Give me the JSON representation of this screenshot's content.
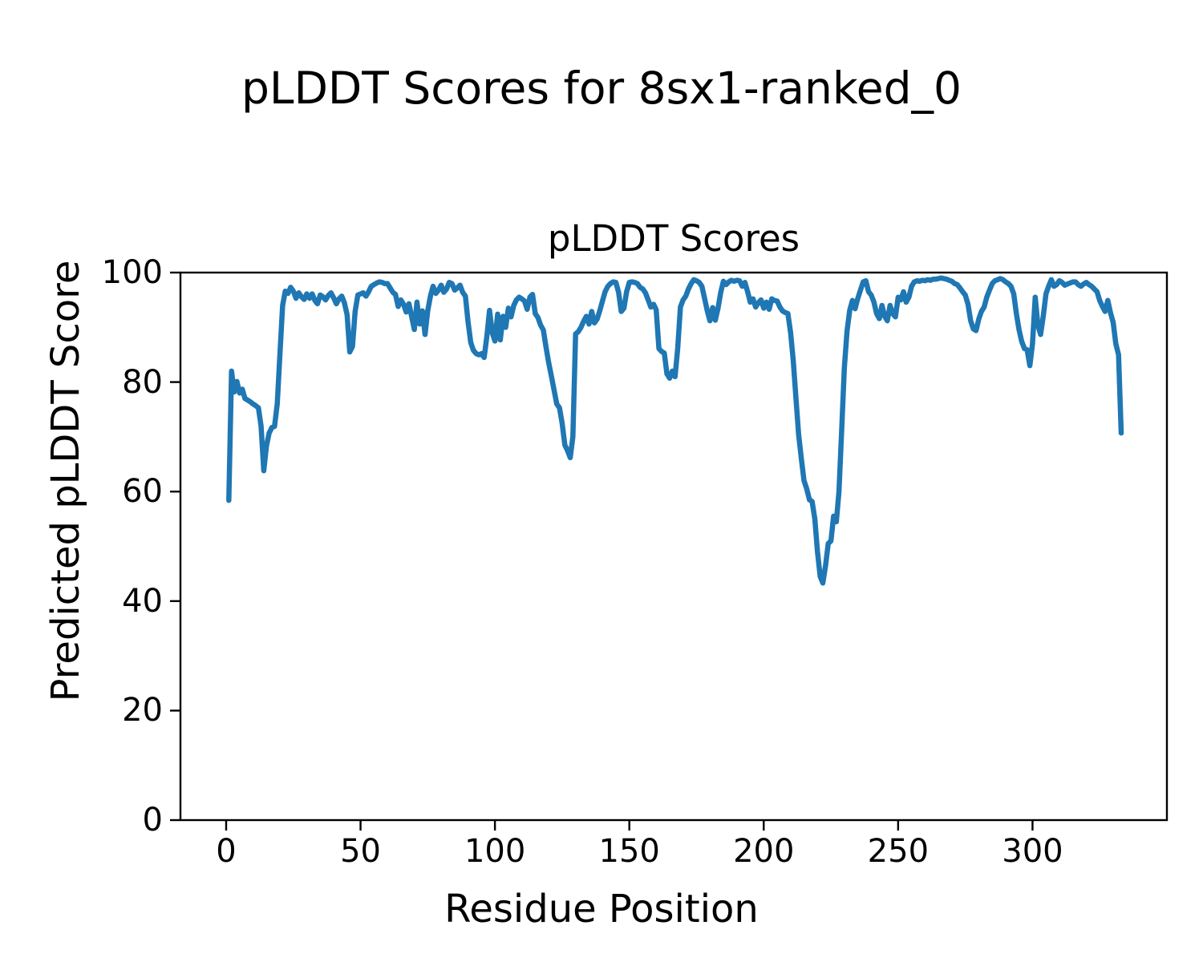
{
  "figure": {
    "suptitle": "pLDDT Scores for 8sx1-ranked_0"
  },
  "chart_data": {
    "type": "line",
    "title": "pLDDT Scores",
    "xlabel": "Residue Position",
    "ylabel": "Predicted pLDDT Score",
    "series_name": "pLDDT per residue",
    "line_color": "#1f77b4",
    "axis_color": "#000000",
    "grid": false,
    "legend": "none",
    "xlim": [
      -17,
      350
    ],
    "ylim": [
      0,
      100
    ],
    "xticks": [
      0,
      50,
      100,
      150,
      200,
      250,
      300
    ],
    "yticks": [
      0,
      20,
      40,
      60,
      80,
      100
    ],
    "x_start": 1,
    "x_step": 1,
    "y": [
      58.4,
      82.0,
      78.2,
      80.1,
      78.0,
      78.7,
      77.0,
      76.7,
      76.4,
      76.0,
      75.7,
      75.3,
      72.0,
      63.8,
      68.3,
      70.7,
      71.7,
      71.9,
      76.0,
      85.0,
      94.0,
      96.6,
      96.2,
      97.3,
      96.6,
      95.3,
      96.3,
      95.6,
      95.1,
      96.1,
      95.3,
      96.1,
      94.9,
      94.3,
      95.9,
      95.6,
      95.0,
      95.8,
      96.3,
      95.4,
      94.3,
      95.2,
      95.7,
      94.5,
      92.3,
      85.5,
      86.5,
      92.9,
      95.9,
      96.1,
      96.3,
      95.7,
      96.5,
      97.5,
      97.8,
      98.1,
      98.3,
      98.2,
      98.0,
      98.0,
      97.2,
      96.4,
      96.0,
      93.8,
      95.0,
      94.2,
      92.8,
      94.3,
      92.0,
      89.6,
      94.6,
      90.6,
      93.0,
      88.7,
      93.0,
      95.7,
      97.5,
      96.2,
      96.8,
      97.7,
      96.4,
      97.0,
      98.2,
      98.0,
      96.8,
      97.2,
      97.7,
      96.4,
      95.7,
      91.0,
      87.2,
      85.8,
      85.2,
      85.0,
      85.2,
      84.5,
      88.4,
      93.1,
      89.0,
      87.5,
      92.4,
      87.7,
      92.0,
      90.0,
      93.5,
      91.9,
      94.0,
      95.0,
      95.5,
      95.2,
      94.8,
      93.3,
      95.5,
      96.0,
      92.5,
      91.8,
      90.4,
      89.5,
      86.4,
      83.5,
      81.1,
      78.5,
      76.0,
      75.3,
      72.5,
      68.5,
      67.5,
      66.2,
      70.0,
      88.8,
      89.2,
      90.0,
      91.1,
      92.0,
      90.6,
      92.9,
      90.8,
      91.5,
      93.0,
      94.8,
      96.5,
      97.5,
      98.0,
      98.3,
      98.2,
      96.4,
      92.9,
      93.5,
      96.5,
      98.2,
      98.3,
      98.2,
      98.0,
      97.3,
      97.0,
      96.3,
      95.0,
      93.7,
      94.2,
      93.2,
      86.1,
      85.6,
      85.3,
      81.5,
      80.7,
      82.0,
      81.0,
      86.1,
      93.7,
      95.0,
      95.7,
      97.0,
      98.0,
      98.7,
      98.5,
      98.2,
      97.5,
      95.3,
      93.0,
      91.2,
      93.6,
      91.3,
      93.5,
      96.4,
      98.4,
      97.8,
      98.3,
      98.6,
      98.4,
      98.6,
      98.5,
      97.5,
      98.2,
      96.5,
      94.6,
      95.2,
      93.7,
      94.5,
      95.0,
      93.5,
      94.6,
      93.3,
      95.2,
      94.9,
      94.8,
      93.7,
      93.0,
      92.7,
      92.5,
      89.0,
      83.9,
      77.0,
      70.4,
      66.0,
      62.0,
      60.5,
      58.5,
      58.2,
      55.0,
      49.0,
      44.5,
      43.3,
      46.5,
      50.5,
      51.0,
      55.5,
      54.5,
      60.0,
      71.3,
      82.6,
      89.4,
      93.1,
      94.9,
      93.4,
      95.3,
      96.8,
      98.3,
      98.5,
      96.5,
      95.9,
      94.6,
      92.5,
      91.6,
      94.0,
      92.0,
      91.2,
      94.0,
      92.5,
      91.9,
      95.5,
      95.0,
      96.5,
      94.6,
      95.5,
      97.5,
      98.3,
      98.5,
      98.4,
      98.6,
      98.5,
      98.7,
      98.6,
      98.8,
      98.8,
      98.9,
      99.0,
      98.9,
      98.8,
      98.6,
      98.4,
      98.0,
      97.8,
      97.2,
      96.5,
      95.9,
      94.2,
      91.2,
      89.7,
      89.4,
      91.5,
      92.9,
      93.7,
      95.5,
      96.8,
      98.0,
      98.5,
      98.7,
      98.9,
      98.7,
      98.3,
      98.0,
      97.5,
      96.1,
      92.5,
      89.5,
      87.4,
      86.1,
      85.9,
      83.0,
      87.0,
      95.5,
      90.4,
      88.7,
      92.0,
      96.1,
      97.5,
      98.7,
      97.5,
      97.8,
      98.5,
      98.2,
      97.7,
      97.9,
      98.1,
      98.3,
      98.3,
      97.8,
      97.5,
      97.9,
      98.2,
      97.8,
      97.5,
      97.0,
      96.5,
      94.9,
      93.8,
      92.9,
      94.9,
      92.7,
      90.9,
      87.0,
      85.0,
      70.7
    ]
  }
}
